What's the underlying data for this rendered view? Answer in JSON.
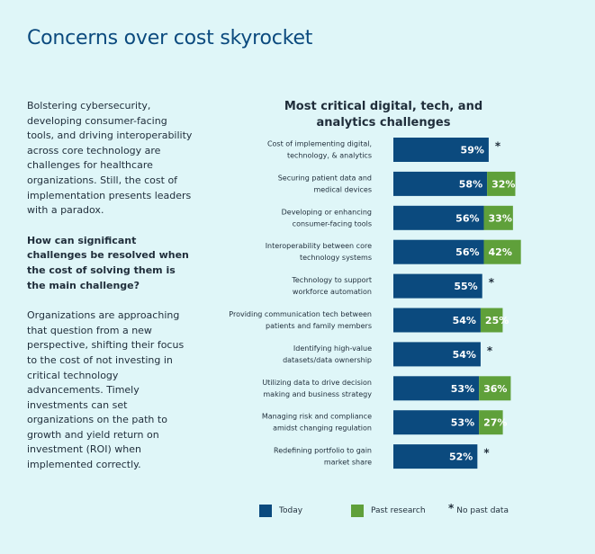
{
  "page": {
    "title": "Concerns over cost skyrocket",
    "paragraph1": "Bolstering cybersecurity, developing consumer-facing tools, and driving interoperability across core technology are challenges for healthcare organizations. Still, the cost of implementation presents leaders with a paradox.",
    "question": "How can significant challenges be resolved when the cost of solving them is the main challenge?",
    "paragraph2": "Organizations are approaching that question from a new perspective, shifting their focus to the cost of not investing in critical technology advancements. Timely investments can set organizations on the path to growth and yield return on investment (ROI) when implemented correctly."
  },
  "colors": {
    "today": "#0b4a7e",
    "past": "#5fa03a",
    "background": "#dff6f8"
  },
  "chart_data": {
    "type": "bar",
    "orientation": "horizontal",
    "stacked": true,
    "title": "Most critical digital, tech, and analytics challenges",
    "categories": [
      [
        "Cost of implementing digital,",
        "technology, & analytics"
      ],
      [
        "Securing patient data and",
        "medical devices"
      ],
      [
        "Developing or enhancing",
        "consumer-facing tools"
      ],
      [
        "Interoperability between core",
        "technology systems"
      ],
      [
        "Technology to support",
        "workforce automation"
      ],
      [
        "Providing communication tech between",
        "patients and family members"
      ],
      [
        "Identifying high-value",
        "datasets/data ownership"
      ],
      [
        "Utilizing data to drive decision",
        "making and business strategy"
      ],
      [
        "Managing risk and compliance",
        "amidst changing regulation"
      ],
      [
        "Redefining portfolio to gain",
        "market share"
      ]
    ],
    "series": [
      {
        "name": "Today",
        "values": [
          59,
          58,
          56,
          56,
          55,
          54,
          54,
          53,
          53,
          52
        ],
        "labels": [
          "59%",
          "58%",
          "56%",
          "56%",
          "55%",
          "54%",
          "54%",
          "53%",
          "53%",
          "52%"
        ]
      },
      {
        "name": "Past research",
        "values": [
          null,
          32,
          33,
          42,
          null,
          25,
          null,
          36,
          27,
          null
        ],
        "labels": [
          null,
          "32%",
          "33%",
          "42%",
          null,
          "25%",
          null,
          "36%",
          "27%",
          null
        ]
      }
    ],
    "no_past_data_marker": "*",
    "legend": {
      "today": "Today",
      "past": "Past research",
      "star_symbol": "*",
      "star_text": "No past data",
      "position": "bottom"
    }
  }
}
